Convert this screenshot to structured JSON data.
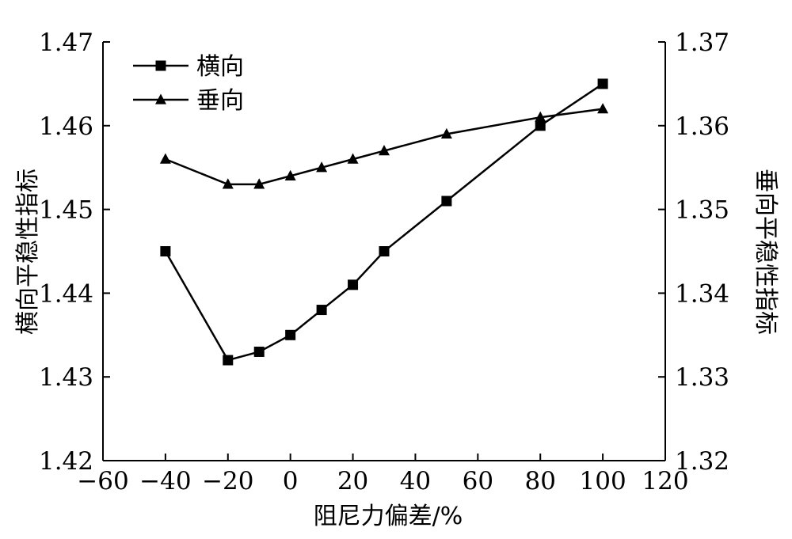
{
  "chart_data": {
    "type": "line",
    "xlabel": "阻尼力偏差/%",
    "ylabel_left": "横向平稳性指标",
    "ylabel_right": "垂向平稳性指标",
    "xlim": [
      -60,
      120
    ],
    "ylim_left": [
      1.42,
      1.47
    ],
    "ylim_right": [
      1.32,
      1.37
    ],
    "x_ticks": [
      -60,
      -40,
      -20,
      0,
      20,
      40,
      60,
      80,
      100,
      120
    ],
    "x_tick_labels": [
      "−60",
      "−40",
      "−20",
      "0",
      "20",
      "40",
      "60",
      "80",
      "100",
      "120"
    ],
    "y_left_ticks": [
      1.42,
      1.43,
      1.44,
      1.45,
      1.46,
      1.47
    ],
    "y_left_tick_labels": [
      "1.42",
      "1.43",
      "1.44",
      "1.45",
      "1.46",
      "1.47"
    ],
    "y_right_ticks": [
      1.32,
      1.33,
      1.34,
      1.35,
      1.36,
      1.37
    ],
    "y_right_tick_labels": [
      "1.32",
      "1.33",
      "1.34",
      "1.35",
      "1.36",
      "1.37"
    ],
    "grid": false,
    "legend_position": "top-left",
    "series": [
      {
        "name": "横向",
        "axis": "left",
        "marker": "square",
        "x": [
          -40,
          -20,
          -10,
          0,
          10,
          20,
          30,
          50,
          80,
          100
        ],
        "y": [
          1.445,
          1.432,
          1.433,
          1.435,
          1.438,
          1.441,
          1.445,
          1.451,
          1.46,
          1.465
        ]
      },
      {
        "name": "垂向",
        "axis": "right",
        "marker": "triangle",
        "x": [
          -40,
          -20,
          -10,
          0,
          10,
          20,
          30,
          50,
          80,
          100
        ],
        "y": [
          1.356,
          1.353,
          1.353,
          1.354,
          1.355,
          1.356,
          1.357,
          1.359,
          1.361,
          1.362
        ]
      }
    ]
  }
}
